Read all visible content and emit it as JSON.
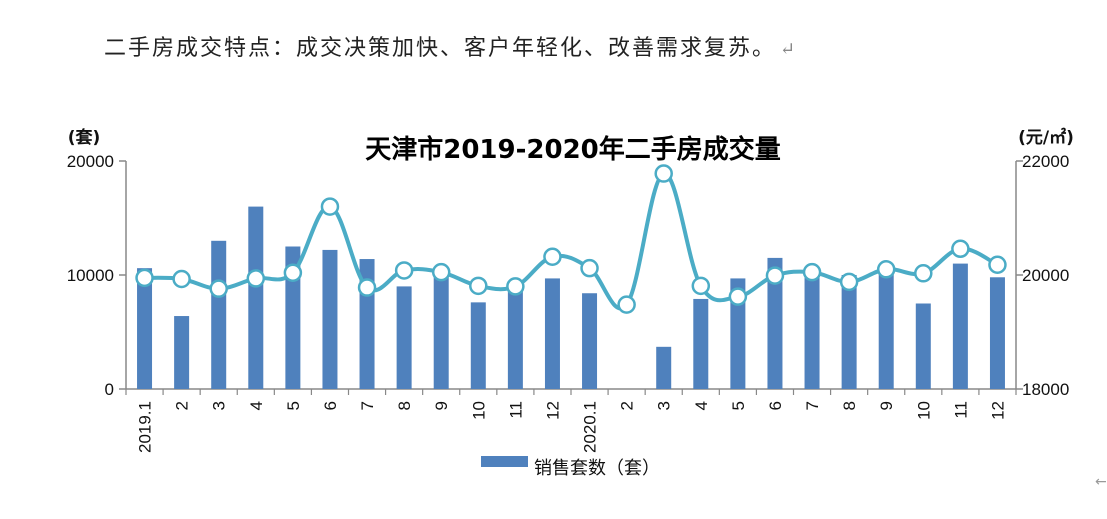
{
  "page": {
    "heading": "二手房成交特点：成交决策加快、客户年轻化、改善需求复苏。",
    "heading_mark": "↵",
    "corner_mark": "←"
  },
  "colors": {
    "bar": "#4f81bd",
    "line": "#4bacc6",
    "axis": "#888888"
  },
  "chart_data": {
    "type": "bar",
    "title": "天津市2019-2020年二手房成交量",
    "categories": [
      "2019.1",
      "2",
      "3",
      "4",
      "5",
      "6",
      "7",
      "8",
      "9",
      "10",
      "11",
      "12",
      "2020.1",
      "2",
      "3",
      "4",
      "5",
      "6",
      "7",
      "8",
      "9",
      "10",
      "11",
      "12"
    ],
    "y_left": {
      "unit": "(套)",
      "range": [
        0,
        20000
      ],
      "ticks": [
        "0",
        "10000",
        "20000"
      ]
    },
    "y_right": {
      "unit": "(元/㎡)",
      "range": [
        18000,
        22000
      ],
      "ticks": [
        "18000",
        "20000",
        "22000"
      ]
    },
    "series": [
      {
        "name": "销售套数（套）",
        "type": "bar",
        "axis": "left",
        "values": [
          10600,
          6400,
          13000,
          16000,
          12500,
          12200,
          11400,
          9000,
          10200,
          7600,
          8700,
          9700,
          8400,
          0,
          3700,
          7900,
          9700,
          11500,
          10300,
          10000,
          10300,
          7500,
          11000,
          9800
        ]
      },
      {
        "type": "line",
        "axis": "right",
        "values": [
          19950,
          19930,
          19760,
          19940,
          20040,
          21200,
          19780,
          20080,
          20050,
          19810,
          19800,
          20320,
          20120,
          19480,
          21780,
          19810,
          19620,
          19990,
          20050,
          19880,
          20100,
          20030,
          20460,
          20180
        ]
      }
    ],
    "legend": {
      "placement": "bottom"
    },
    "grid": false
  }
}
